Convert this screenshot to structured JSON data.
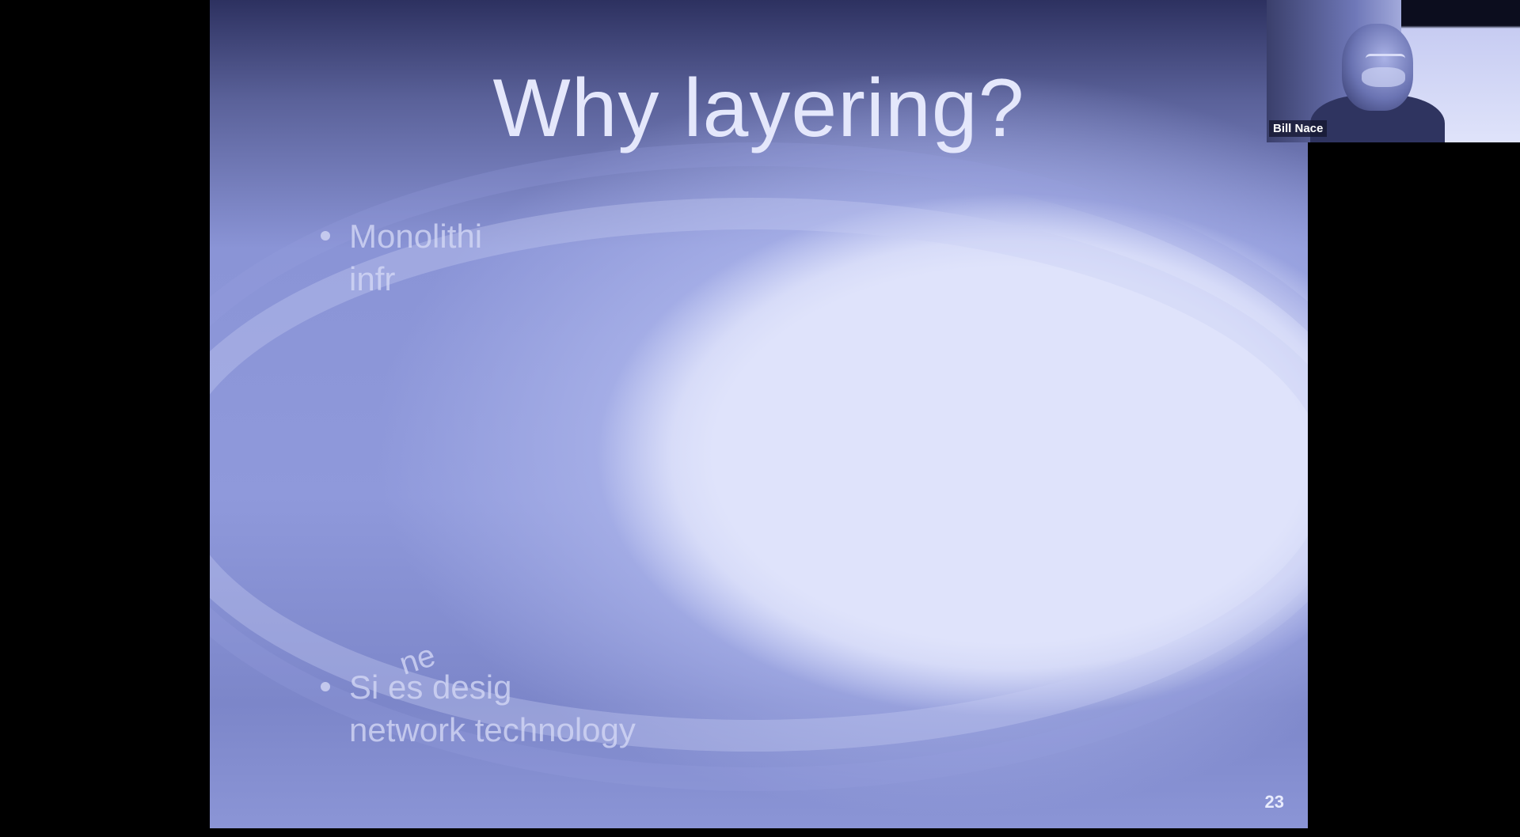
{
  "slide": {
    "title": "Why layering?",
    "bullets": [
      {
        "line1": "Monolithi",
        "line2": "infr"
      },
      {
        "line1": "Si       es desig",
        "line2": "network technology"
      }
    ],
    "fragment": "ne",
    "page_number": "23"
  },
  "camera": {
    "participant_name": "Bill Nace"
  }
}
